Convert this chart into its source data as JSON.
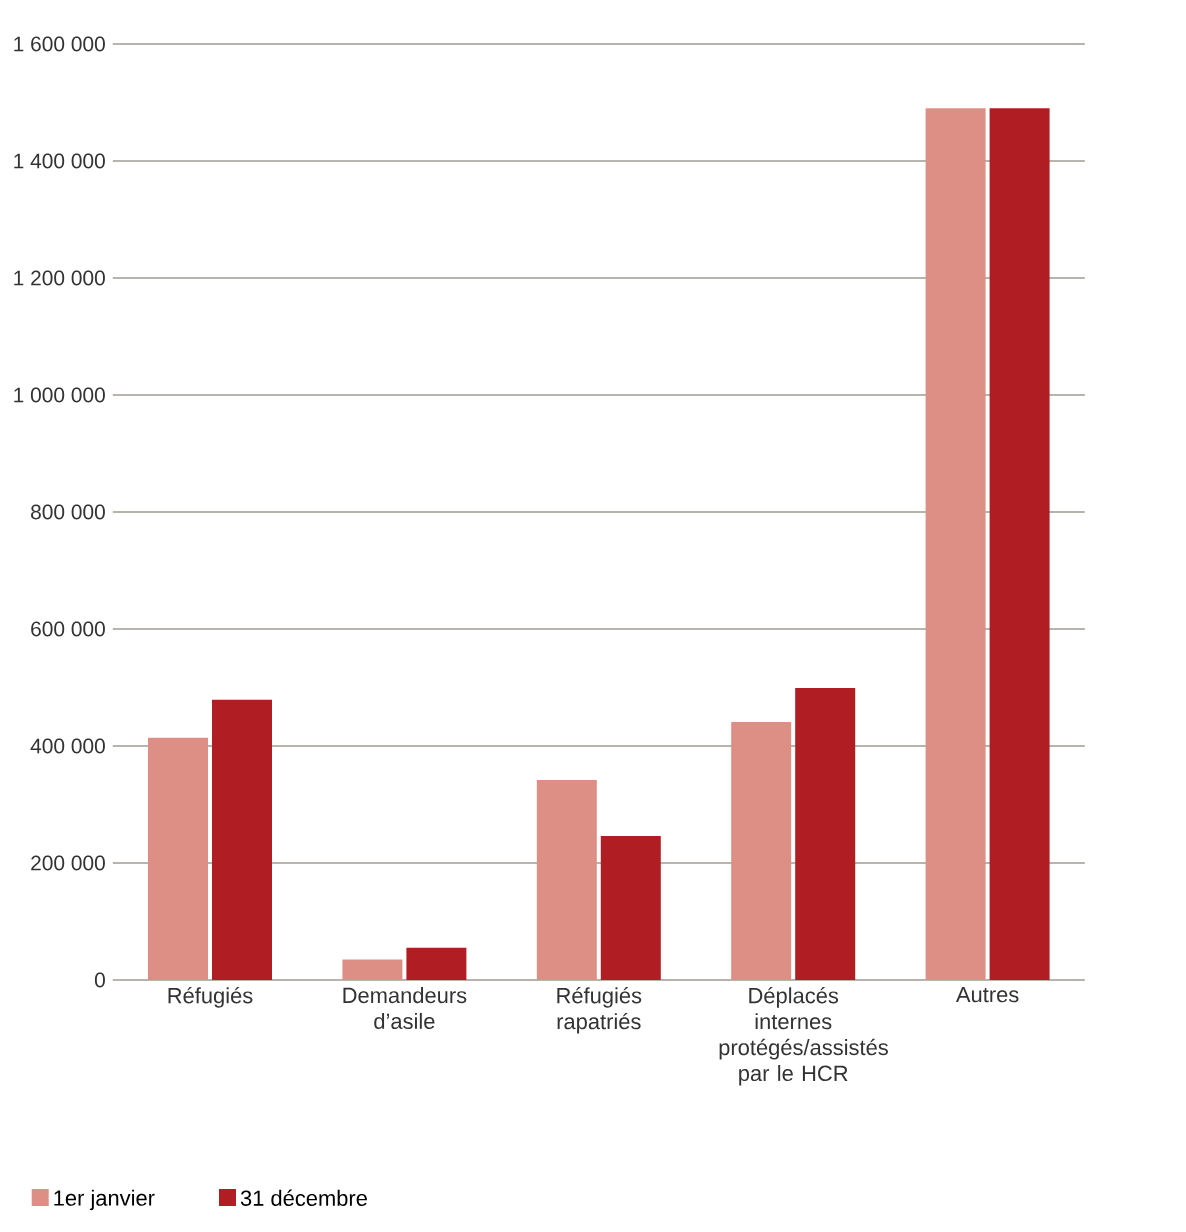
{
  "chart_data": {
    "type": "bar",
    "categories": [
      "Réfugiés",
      "Demandeurs d’asile",
      "Réfugiés rapatriés",
      "Déplacés internes protégés/assistés par le HCR",
      "Autres"
    ],
    "series": [
      {
        "name": "1er janvier",
        "color": "#dd8f86",
        "values": [
          414000,
          35000,
          342000,
          441000,
          1490000
        ]
      },
      {
        "name": "31 décembre",
        "color": "#b01e23",
        "values": [
          479000,
          55000,
          246000,
          499000,
          1490000
        ]
      }
    ],
    "ylim": [
      0,
      1600000
    ],
    "yticks": [
      0,
      {
        "value": 200000,
        "label": "200 000"
      },
      {
        "value": 400000,
        "label": "400 000"
      },
      {
        "value": 600000,
        "label": "600 000"
      },
      {
        "value": 800000,
        "label": "800 000"
      },
      {
        "value": 1000000,
        "label": "1 000 000"
      },
      {
        "value": 1200000,
        "label": "1 200 000"
      },
      {
        "value": 1400000,
        "label": "1 400 000"
      },
      {
        "value": 1600000,
        "label": "1 600 000"
      }
    ],
    "grid": "y",
    "legend": "bottom left"
  }
}
